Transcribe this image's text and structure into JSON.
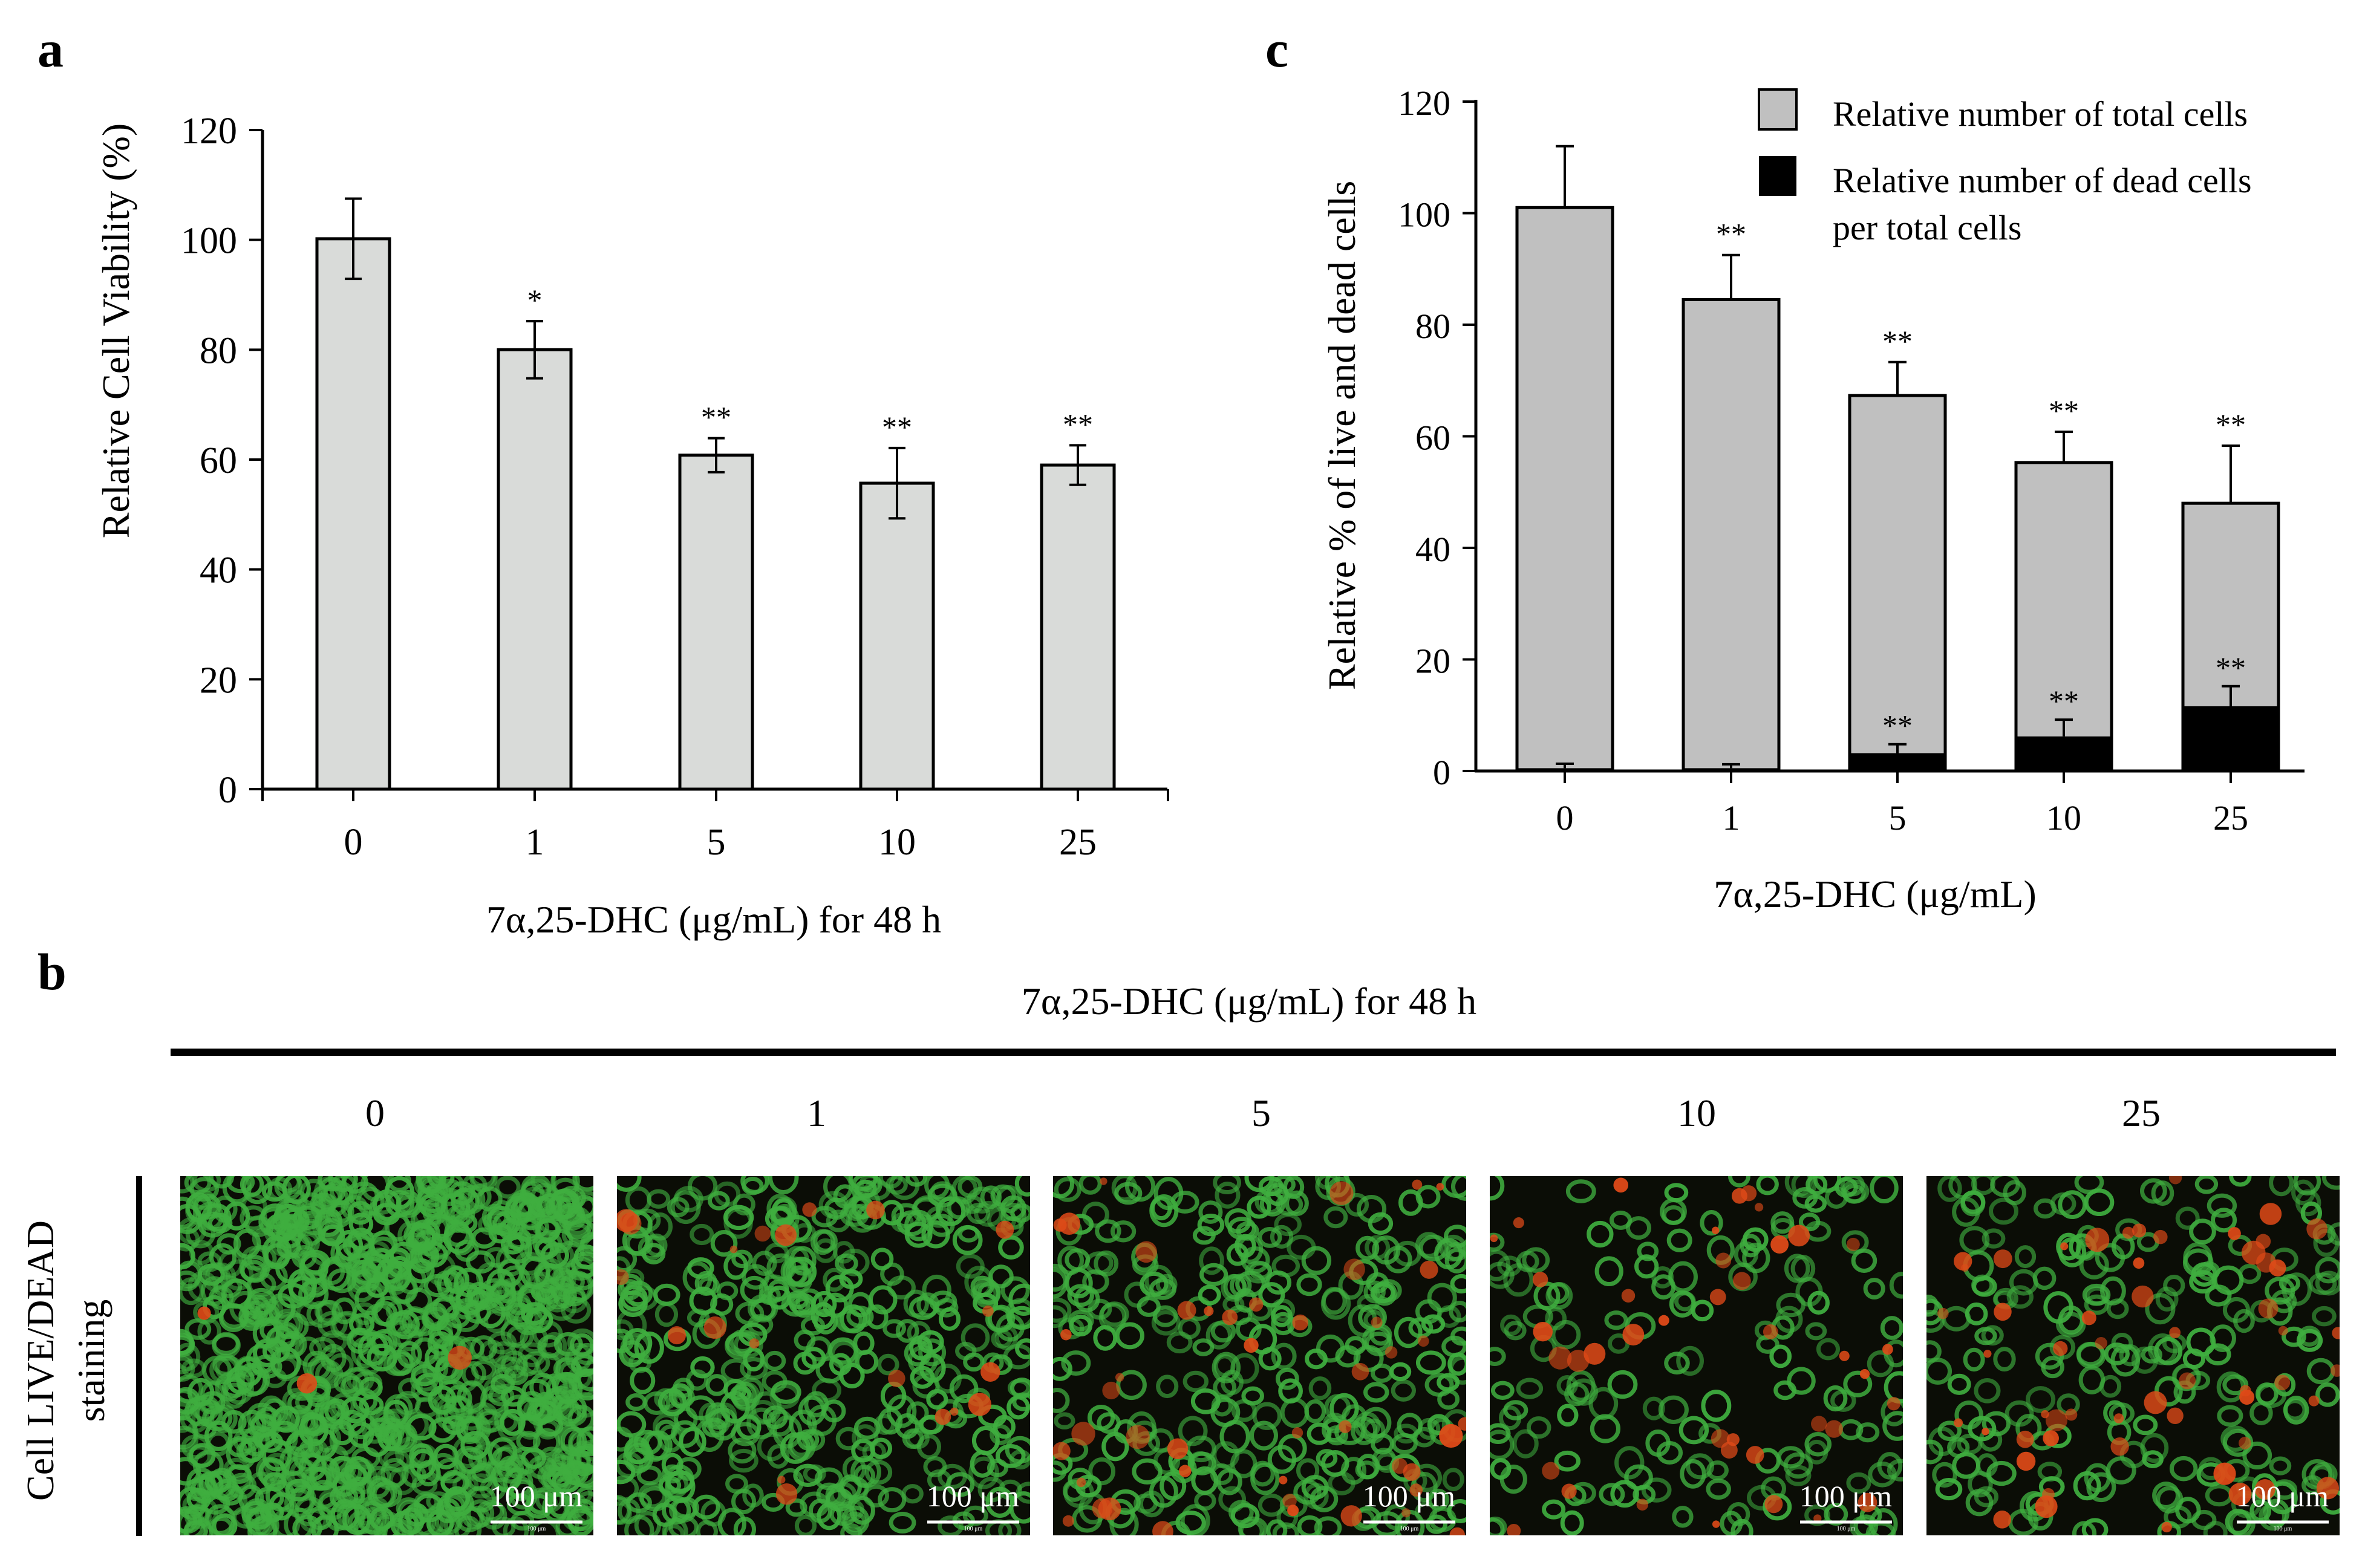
{
  "panel_a": {
    "label": "a",
    "xlabel": "7α,25-DHC (μg/mL) for 48 h",
    "ylabel": "Relative Cell Viability (%)",
    "yticks": [
      "0",
      "20",
      "40",
      "60",
      "80",
      "100",
      "120"
    ],
    "categories": [
      "0",
      "1",
      "5",
      "10",
      "25"
    ],
    "significance": [
      "",
      "*",
      "**",
      "**",
      "**"
    ]
  },
  "panel_c": {
    "label": "c",
    "xlabel": "7α,25-DHC (μg/mL)",
    "ylabel": "Relative % of live and dead cells",
    "yticks": [
      "0",
      "20",
      "40",
      "60",
      "80",
      "100",
      "120"
    ],
    "categories": [
      "0",
      "1",
      "5",
      "10",
      "25"
    ],
    "legend": {
      "total": "Relative number of total cells",
      "dead_line1": "Relative number of dead cells",
      "dead_line2": "per total cells"
    },
    "significance_total": [
      "",
      "**",
      "**",
      "**",
      "**"
    ],
    "significance_dead": [
      "",
      "",
      "**",
      "**",
      "**"
    ]
  },
  "panel_b": {
    "label": "b",
    "header": "7α,25-DHC (μg/mL) for 48 h",
    "row_label_line1": "Cell LIVE/DEAD",
    "row_label_line2": "staining",
    "concentrations": [
      "0",
      "1",
      "5",
      "10",
      "25"
    ],
    "scale_bar": "100 μm",
    "scale_bar_small": "100 μm"
  },
  "colors": {
    "bar_a": "#d9dbd9",
    "bar_total": "#c0c0c0",
    "bar_dead": "#000000",
    "live_cell": "#3fae3f",
    "dead_cell": "#e04a18",
    "micro_background": "#0b0d06"
  },
  "chart_data": [
    {
      "type": "bar",
      "title": "",
      "xlabel": "7α,25-DHC (μg/mL) for 48 h",
      "ylabel": "Relative Cell Viability (%)",
      "ylim": [
        0,
        120
      ],
      "categories": [
        "0",
        "1",
        "5",
        "10",
        "25"
      ],
      "series": [
        {
          "values": [
            100.2,
            80.0,
            60.8,
            55.7,
            59.0
          ],
          "errors": [
            7.3,
            5.2,
            3.1,
            6.4,
            3.6
          ]
        }
      ],
      "annotations": [
        "",
        "*",
        "**",
        "**",
        "**"
      ],
      "grid": false
    },
    {
      "type": "bar",
      "title": "",
      "xlabel": "7α,25-DHC (μg/mL)",
      "ylabel": "Relative % of live and dead cells",
      "ylim": [
        0,
        120
      ],
      "categories": [
        "0",
        "1",
        "5",
        "10",
        "25"
      ],
      "series": [
        {
          "name": "Relative number of total cells",
          "values": [
            101.0,
            84.5,
            67.3,
            55.3,
            48.0
          ],
          "errors": [
            11.0,
            8.0,
            6.0,
            5.5,
            10.3
          ]
        },
        {
          "name": "Relative number of dead cells per total cells",
          "values": [
            0.5,
            0.5,
            3.2,
            6.2,
            11.6
          ],
          "errors": [
            0.8,
            0.7,
            1.6,
            3.0,
            3.6
          ]
        }
      ],
      "annotations_total": [
        "",
        "**",
        "**",
        "**",
        "**"
      ],
      "annotations_dead": [
        "",
        "",
        "**",
        "**",
        "**"
      ],
      "legend_position": "top-right",
      "grid": false
    }
  ]
}
